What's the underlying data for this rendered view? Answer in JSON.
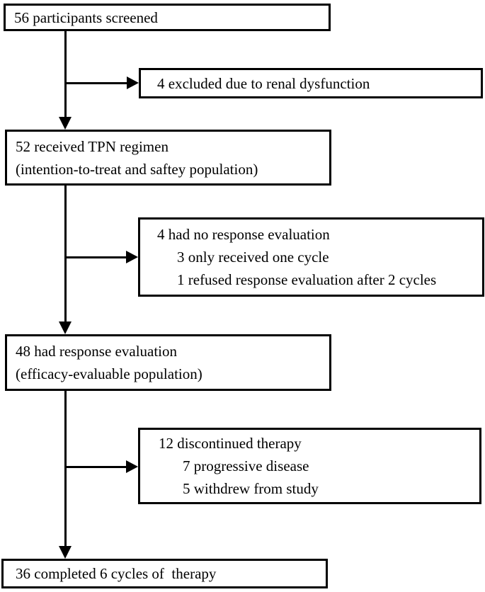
{
  "figure": {
    "type": "participant-flow-diagram",
    "colors": {
      "border": "#000000",
      "background": "#ffffff",
      "text": "#000000"
    },
    "boxes": {
      "screened": {
        "lines": [
          "56 participants screened"
        ]
      },
      "excluded": {
        "lines": [
          "4 excluded due to renal dysfunction"
        ]
      },
      "received": {
        "lines": [
          "52 received TPN regimen",
          "(intention-to-treat and saftey population)"
        ]
      },
      "no_response": {
        "lines": [
          "4 had no response evaluation",
          "3 only received one cycle",
          "1 refused response evaluation after 2 cycles"
        ]
      },
      "response": {
        "lines": [
          "48 had response evaluation",
          "(efficacy-evaluable population)"
        ]
      },
      "discontinued": {
        "lines": [
          "12 discontinued therapy",
          "7 progressive disease",
          "5 withdrew from study"
        ]
      },
      "completed": {
        "lines": [
          "36 completed 6 cycles of  therapy"
        ]
      }
    },
    "edges": [
      {
        "from": "screened",
        "to": "received"
      },
      {
        "from": "screened",
        "to": "excluded"
      },
      {
        "from": "received",
        "to": "response"
      },
      {
        "from": "received",
        "to": "no_response"
      },
      {
        "from": "response",
        "to": "completed"
      },
      {
        "from": "response",
        "to": "discontinued"
      }
    ]
  }
}
